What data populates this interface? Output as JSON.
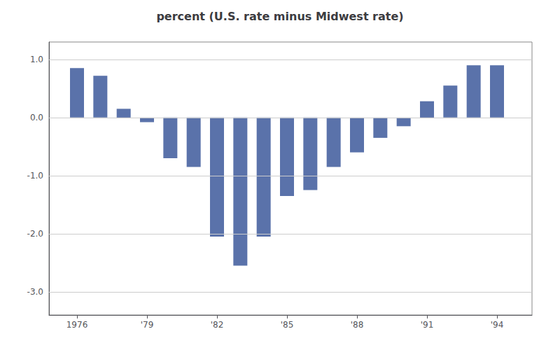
{
  "chart_data": {
    "type": "bar",
    "title": "percent (U.S. rate minus Midwest rate)",
    "x": [
      1976,
      1977,
      1978,
      1979,
      1980,
      1981,
      1982,
      1983,
      1984,
      1985,
      1986,
      1987,
      1988,
      1989,
      1990,
      1991,
      1992,
      1993,
      1994
    ],
    "values": [
      0.85,
      0.72,
      0.15,
      -0.08,
      -0.7,
      -0.85,
      -2.05,
      -2.55,
      -2.05,
      -1.35,
      -1.25,
      -0.85,
      -0.6,
      -0.35,
      -0.15,
      0.28,
      0.55,
      0.9,
      0.9
    ],
    "color": "#5a72aa",
    "xlim": [
      1974.8,
      1995.5
    ],
    "xticks": [
      1976,
      {
        "value": 1979,
        "label": "'79"
      },
      {
        "value": 1982,
        "label": "'82"
      },
      {
        "value": 1985,
        "label": "'85"
      },
      {
        "value": 1988,
        "label": "'88"
      },
      {
        "value": 1991,
        "label": "'91"
      },
      {
        "value": 1994,
        "label": "'94"
      }
    ],
    "ylim": [
      -3.4,
      1.3
    ],
    "yticks": [
      {
        "value": 1.0,
        "label": "1.0"
      },
      {
        "value": 0.0,
        "label": "0.0"
      },
      {
        "value": -1.0,
        "label": "-1.0"
      },
      {
        "value": -2.0,
        "label": "-2.0"
      },
      {
        "value": -3.0,
        "label": "-3.0"
      }
    ],
    "grid": true
  }
}
